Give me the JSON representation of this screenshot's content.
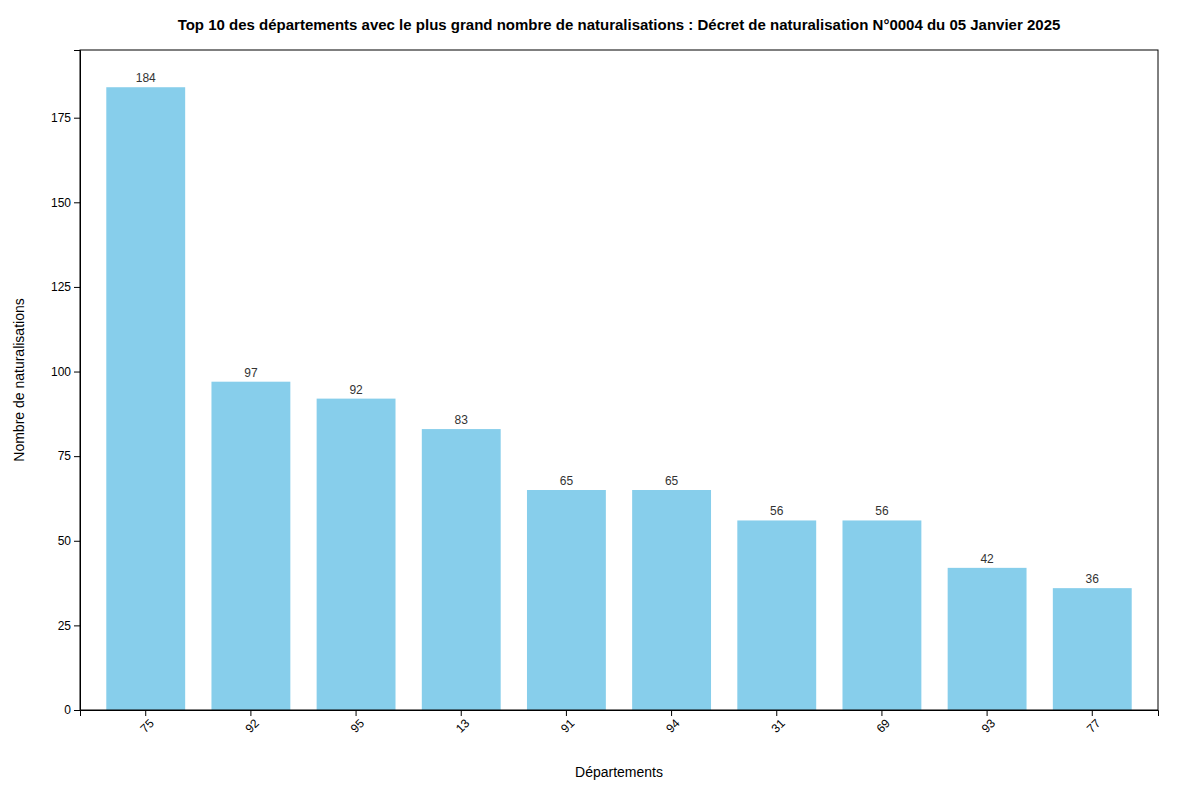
{
  "chart_data": {
    "type": "bar",
    "title": "Top 10 des départements avec le plus grand nombre de naturalisations : Décret de naturalisation N°0004 du 05 Janvier 2025",
    "xlabel": "Départements",
    "ylabel": "Nombre de naturalisations",
    "categories": [
      "75",
      "92",
      "95",
      "13",
      "91",
      "94",
      "31",
      "69",
      "93",
      "77"
    ],
    "values": [
      184,
      97,
      92,
      83,
      65,
      65,
      56,
      56,
      42,
      36
    ],
    "color": "#87CEEB",
    "ylim": [
      0,
      195
    ],
    "yticks": [
      0,
      25,
      50,
      75,
      100,
      125,
      150,
      175
    ],
    "grid": false,
    "data_labels": true
  }
}
